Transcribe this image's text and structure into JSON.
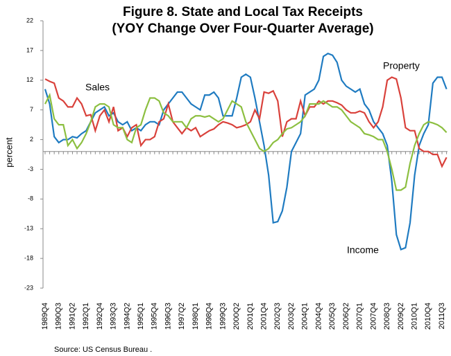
{
  "chart_data": {
    "type": "line",
    "title": [
      "Figure 8. State and Local Tax Receipts",
      "(YOY Change Over Four-Quarter Average)"
    ],
    "y_label": "percent",
    "source": "Source: US Census Bureau .",
    "categories": [
      "1989Q4",
      null,
      null,
      "1990Q3",
      null,
      null,
      "1991Q2",
      null,
      null,
      "1992Q1",
      null,
      null,
      "1992Q4",
      null,
      null,
      "1993Q3",
      null,
      null,
      "1994Q2",
      null,
      null,
      "1995Q1",
      null,
      null,
      "1995Q4",
      null,
      null,
      "1996Q3",
      null,
      null,
      "1997Q2",
      null,
      null,
      "1998Q1",
      null,
      null,
      "1998Q4",
      null,
      null,
      "1999Q3",
      null,
      null,
      "2000Q2",
      null,
      null,
      "2001Q1",
      null,
      null,
      "2001Q4",
      null,
      null,
      "2002Q3",
      null,
      null,
      "2003Q2",
      null,
      null,
      "2004Q1",
      null,
      null,
      "2004Q4",
      null,
      null,
      "2005Q3",
      null,
      null,
      "2006Q2",
      null,
      null,
      "2007Q1",
      null,
      null,
      "2007Q4",
      null,
      null,
      "2008Q3",
      null,
      null,
      "2009Q2",
      null,
      null,
      "2010Q1",
      null,
      null,
      "2010Q4",
      null,
      null,
      "2011Q3",
      null
    ],
    "series": [
      {
        "name": "Income",
        "color": "#1f7bc1",
        "values": [
          10.5,
          8,
          2.5,
          1.5,
          2,
          2,
          2.5,
          2.3,
          3,
          3.5,
          5,
          6.5,
          7,
          7.5,
          6,
          6.5,
          5,
          4.5,
          5,
          3.5,
          4,
          3.5,
          4.5,
          5,
          5,
          4.5,
          7,
          8,
          9,
          10,
          10,
          9,
          8,
          7.5,
          7,
          9.5,
          9.5,
          10,
          9,
          6,
          6,
          6,
          9,
          12.5,
          13,
          12.5,
          9,
          5,
          1,
          -4,
          -12,
          -11.8,
          -10,
          -6,
          0,
          1.5,
          3,
          9.5,
          10,
          10.5,
          12,
          16,
          16.5,
          16.2,
          15,
          12,
          11,
          10.5,
          10,
          10.5,
          8,
          7,
          5,
          4,
          3,
          1,
          -5,
          -14,
          -16.5,
          -16.2,
          -12,
          -4,
          1,
          3,
          4.5,
          11.5,
          12.5,
          12.5,
          10.5
        ]
      },
      {
        "name": "Property",
        "color": "#d9413b",
        "values": [
          12.2,
          11.8,
          11.5,
          9,
          8.5,
          7.5,
          7.5,
          9,
          8,
          6,
          6.2,
          3.5,
          6,
          7,
          5,
          7.5,
          3.5,
          4,
          2.5,
          4,
          4.5,
          1,
          2,
          2,
          2.5,
          5,
          5.5,
          8,
          5,
          4,
          3,
          4,
          3.5,
          4,
          2.5,
          3,
          3.5,
          3.8,
          4.5,
          5,
          4.8,
          4.5,
          4,
          4.2,
          4.5,
          5,
          7,
          5.5,
          10,
          9.8,
          10.2,
          8.5,
          2.5,
          5,
          5.5,
          5.5,
          8.5,
          6,
          7.5,
          7.5,
          8.5,
          8,
          8.5,
          8.5,
          8.2,
          7.8,
          7,
          6.5,
          6.5,
          6.8,
          6.5,
          5,
          4,
          5,
          7.5,
          12,
          12.5,
          12.2,
          9,
          4,
          3.5,
          3.5,
          0.5,
          0,
          0,
          -0.5,
          -0.5,
          -2.5,
          -1
        ]
      },
      {
        "name": "Sales",
        "color": "#8cbf40",
        "values": [
          8,
          9.5,
          5.5,
          4.5,
          4.5,
          1,
          2,
          0.5,
          1.5,
          3,
          5,
          7.5,
          8,
          8,
          7.5,
          4.5,
          4,
          4,
          2,
          1.5,
          4,
          4.5,
          7,
          9,
          9,
          8.5,
          6.5,
          6,
          5,
          5,
          5,
          4,
          5.5,
          6,
          6,
          5.8,
          6,
          5.5,
          5,
          5.5,
          7,
          8.5,
          8,
          7.5,
          5,
          3.5,
          2,
          0.5,
          0,
          0.5,
          1.5,
          2,
          3,
          3.8,
          4,
          4.5,
          5,
          6,
          8,
          8,
          8,
          8.5,
          8,
          7.5,
          7.5,
          7,
          6,
          5,
          4.5,
          4,
          3,
          2.8,
          2.5,
          2,
          2,
          0,
          -3,
          -6.5,
          -6.5,
          -6,
          -2,
          1,
          3,
          4.5,
          5,
          4.8,
          4.5,
          4,
          3.2
        ]
      }
    ],
    "ylim": [
      -23,
      22
    ],
    "yticks": [
      22,
      17,
      12,
      7,
      2,
      -3,
      -8,
      -13,
      -18,
      -23
    ],
    "grid": false
  }
}
